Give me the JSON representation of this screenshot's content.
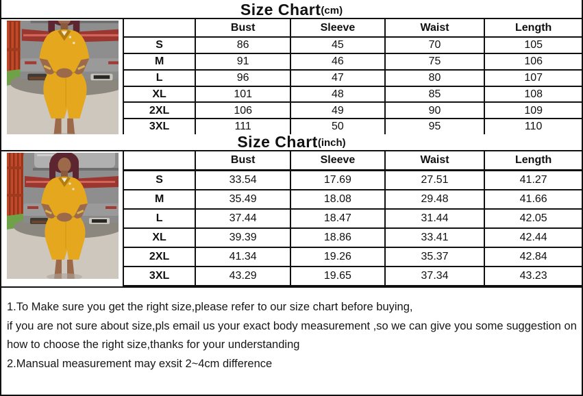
{
  "tables": [
    {
      "title": "Size Chart",
      "unit": "(cm)",
      "columns": [
        "",
        "Bust",
        "Sleeve",
        "Waist",
        "Length"
      ],
      "rows": [
        [
          "S",
          "86",
          "45",
          "70",
          "105"
        ],
        [
          "M",
          "91",
          "46",
          "75",
          "106"
        ],
        [
          "L",
          "96",
          "47",
          "80",
          "107"
        ],
        [
          "XL",
          "101",
          "48",
          "85",
          "108"
        ],
        [
          "2XL",
          "106",
          "49",
          "90",
          "109"
        ],
        [
          "3XL",
          "111",
          "50",
          "95",
          "110"
        ]
      ]
    },
    {
      "title": "Size Chart",
      "unit": "(inch)",
      "columns": [
        "",
        "Bust",
        "Sleeve",
        "Waist",
        "Length"
      ],
      "rows": [
        [
          "S",
          "33.54",
          "17.69",
          "27.51",
          "41.27"
        ],
        [
          "M",
          "35.49",
          "18.08",
          "29.48",
          "41.66"
        ],
        [
          "L",
          "37.44",
          "18.47",
          "31.44",
          "42.05"
        ],
        [
          "XL",
          "39.39",
          "18.86",
          "33.41",
          "42.44"
        ],
        [
          "2XL",
          "41.34",
          "19.26",
          "35.37",
          "42.84"
        ],
        [
          "3XL",
          "43.29",
          "19.65",
          "37.34",
          "43.23"
        ]
      ]
    }
  ],
  "notes": [
    "1.To Make sure you get the right size,please refer to our size chart before buying,",
    "if you are not sure about size,pls email us your exact body measurement ,so we can give you some suggestion on",
    "how to choose the right size,thanks for your understanding",
    "2.Mansual measurement may exsit 2~4cm difference"
  ],
  "photos": {
    "description": "model wearing yellow knee-length dress with front slit, standing at rear of gray SUV, orange fence and grass at left",
    "colors": {
      "dress": "#e5a71d",
      "dress_dark": "#c08a10",
      "skin": "#9c6a4a",
      "hair": "#5c2530",
      "suv": "#8e8e8e",
      "taillight": "#9b3731",
      "fence": "#c1492a",
      "grass": "#6fa148",
      "ground": "#cdc7be",
      "border": "#101010"
    }
  }
}
